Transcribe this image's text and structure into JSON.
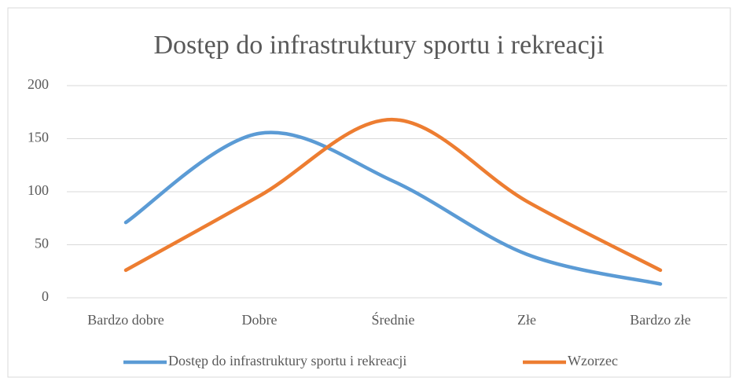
{
  "chart_data": {
    "type": "line",
    "title": "Dostęp do infrastruktury sportu i rekreacji",
    "categories": [
      "Bardzo dobre",
      "Dobre",
      "Średnie",
      "Złe",
      "Bardzo złe"
    ],
    "series": [
      {
        "name": "Dostęp do infrastruktury sportu i rekreacji",
        "color": "#5b9bd5",
        "values": [
          71,
          155,
          110,
          41,
          13
        ]
      },
      {
        "name": "Wzorzec",
        "color": "#ed7d31",
        "values": [
          26,
          96,
          168,
          91,
          26
        ]
      }
    ],
    "ylim": [
      0,
      200
    ],
    "yticks": [
      0,
      50,
      100,
      150,
      200
    ],
    "grid": true,
    "smooth": true,
    "legend": "bottom"
  }
}
